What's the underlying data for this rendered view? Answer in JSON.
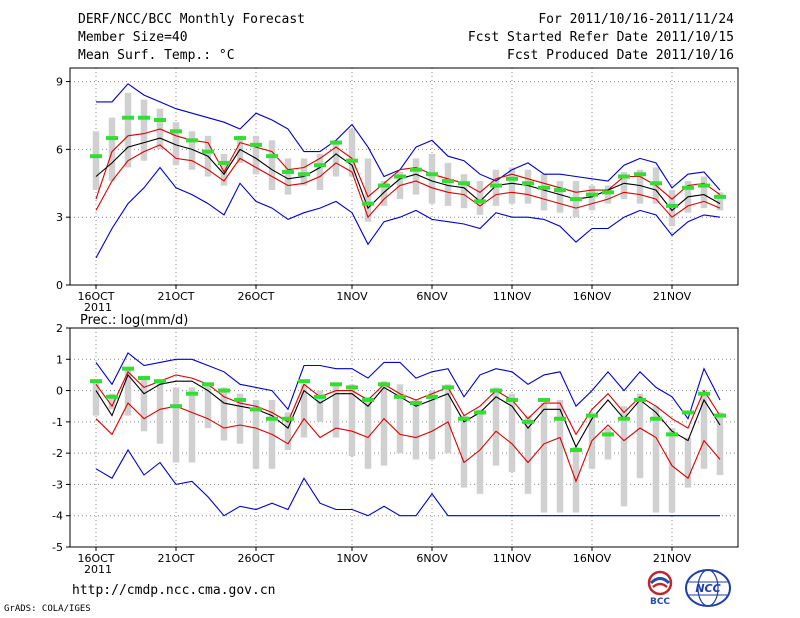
{
  "header": {
    "title": "DERF/NCC/BCC Monthly Forecast",
    "member": "Member Size=40",
    "variable": "Mean Surf. Temp.: °C",
    "forecast_for": "For 2011/10/16-2011/11/24",
    "started": "Fcst Started Refer Date 2011/10/15",
    "produced": "Fcst Produced Date 2011/10/16"
  },
  "footer": {
    "url": "http://cmdp.ncc.cma.gov.cn",
    "credit": "GrADS: COLA/IGES"
  },
  "logos": {
    "bcc": "BCC",
    "ncc": "NCC"
  },
  "colors": {
    "box": "#d0d0d0",
    "median": "#33dd33",
    "mean": "#000000",
    "spread": "#dd0000",
    "envelope": "#0000cc",
    "grid": "#888888"
  },
  "chart_data": [
    {
      "type": "line",
      "title": "Mean Surf. Temp.: °C",
      "ylim": [
        0,
        9.6
      ],
      "yticks": [
        0,
        3,
        6,
        9
      ],
      "x_range": [
        1,
        40
      ],
      "xticks": [
        {
          "x": 1,
          "label": "16OCT",
          "sub": "2011"
        },
        {
          "x": 6,
          "label": "21OCT"
        },
        {
          "x": 11,
          "label": "26OCT"
        },
        {
          "x": 17,
          "label": "1NOV"
        },
        {
          "x": 22,
          "label": "6NOV"
        },
        {
          "x": 27,
          "label": "11NOV"
        },
        {
          "x": 32,
          "label": "16NOV"
        },
        {
          "x": 37,
          "label": "21NOV"
        }
      ],
      "max": [
        8.1,
        8.1,
        8.9,
        8.4,
        8.1,
        7.8,
        7.6,
        7.4,
        7.2,
        6.9,
        7.6,
        7.3,
        6.9,
        5.9,
        5.9,
        6.4,
        7.1,
        6.1,
        4.8,
        5.1,
        6.1,
        6.4,
        5.7,
        5.5,
        4.9,
        4.6,
        5.1,
        5.4,
        4.9,
        4.9,
        4.8,
        4.7,
        4.6,
        5.3,
        5.6,
        5.4,
        4.3,
        4.9,
        5.0,
        4.2
      ],
      "upper": [
        3.8,
        5.9,
        6.6,
        6.7,
        6.9,
        6.6,
        6.4,
        6.3,
        5.0,
        6.3,
        6.1,
        5.9,
        5.1,
        5.2,
        5.6,
        6.1,
        5.6,
        3.9,
        4.5,
        5.1,
        5.2,
        4.9,
        4.7,
        4.5,
        4.1,
        4.7,
        4.9,
        4.7,
        4.5,
        4.3,
        4.1,
        4.2,
        4.2,
        4.8,
        4.8,
        4.4,
        3.8,
        4.4,
        4.5,
        4.0
      ],
      "mean": [
        4.8,
        5.4,
        6.1,
        6.3,
        6.5,
        6.2,
        6.0,
        5.7,
        4.9,
        6.0,
        5.6,
        5.1,
        4.7,
        4.8,
        5.2,
        5.8,
        5.3,
        3.4,
        4.1,
        4.7,
        4.9,
        4.6,
        4.4,
        4.3,
        3.7,
        4.4,
        4.5,
        4.4,
        4.2,
        4.0,
        3.8,
        3.9,
        4.2,
        4.5,
        4.4,
        4.2,
        3.3,
        3.9,
        4.0,
        3.6
      ],
      "lower": [
        3.3,
        4.6,
        5.5,
        5.9,
        6.2,
        5.6,
        5.5,
        5.1,
        4.6,
        5.6,
        5.2,
        4.8,
        4.4,
        4.5,
        4.8,
        5.4,
        5.0,
        3.0,
        3.8,
        4.4,
        4.6,
        4.3,
        4.1,
        4.0,
        3.5,
        4.0,
        4.1,
        4.0,
        3.8,
        3.6,
        3.4,
        3.6,
        3.8,
        4.1,
        4.0,
        3.8,
        3.0,
        3.5,
        3.7,
        3.4
      ],
      "min": [
        1.2,
        2.5,
        3.6,
        4.3,
        5.2,
        4.3,
        4.0,
        3.6,
        3.1,
        4.5,
        3.7,
        3.4,
        2.9,
        3.2,
        3.4,
        3.7,
        3.2,
        1.8,
        2.8,
        3.0,
        3.3,
        2.9,
        2.8,
        2.7,
        2.5,
        3.2,
        3.0,
        3.0,
        2.9,
        2.6,
        1.9,
        2.5,
        2.5,
        3.0,
        3.3,
        3.1,
        2.2,
        2.8,
        3.1,
        3.0
      ],
      "box_high": [
        6.8,
        7.4,
        8.5,
        8.2,
        7.8,
        7.2,
        6.8,
        6.6,
        5.8,
        6.6,
        6.6,
        6.4,
        5.6,
        5.6,
        5.8,
        6.4,
        6.9,
        5.6,
        4.6,
        5.0,
        5.6,
        5.8,
        5.4,
        4.9,
        4.6,
        5.1,
        5.2,
        5.1,
        4.9,
        4.6,
        4.6,
        4.4,
        4.4,
        5.0,
        5.1,
        5.2,
        4.2,
        4.6,
        4.8,
        4.1
      ],
      "box_low": [
        4.2,
        4.6,
        5.2,
        5.5,
        6.0,
        5.3,
        5.1,
        4.8,
        4.4,
        5.4,
        4.9,
        4.2,
        4.0,
        4.4,
        4.2,
        4.8,
        4.8,
        2.8,
        3.5,
        3.8,
        4.0,
        3.6,
        3.5,
        3.4,
        3.1,
        3.5,
        3.6,
        3.6,
        3.3,
        3.2,
        3.0,
        3.3,
        3.6,
        3.8,
        3.6,
        3.6,
        2.6,
        3.2,
        3.4,
        3.3
      ],
      "median": [
        5.7,
        6.5,
        7.4,
        7.4,
        7.3,
        6.8,
        6.4,
        5.9,
        5.4,
        6.5,
        6.2,
        5.7,
        5.0,
        4.9,
        5.3,
        6.3,
        5.5,
        3.6,
        4.4,
        4.8,
        5.1,
        4.9,
        4.6,
        4.5,
        3.7,
        4.4,
        4.7,
        4.5,
        4.3,
        4.2,
        3.8,
        4.0,
        4.1,
        4.8,
        4.9,
        4.5,
        3.5,
        4.3,
        4.4,
        3.9
      ]
    },
    {
      "type": "line",
      "title": "Prec.: log(mm/d)",
      "ylim": [
        -5,
        2
      ],
      "yticks": [
        -5,
        -4,
        -3,
        -2,
        -1,
        0,
        1,
        2
      ],
      "x_range": [
        1,
        40
      ],
      "xticks": [
        {
          "x": 1,
          "label": "16OCT",
          "sub": "2011"
        },
        {
          "x": 6,
          "label": "21OCT"
        },
        {
          "x": 11,
          "label": "26OCT"
        },
        {
          "x": 17,
          "label": "1NOV"
        },
        {
          "x": 22,
          "label": "6NOV"
        },
        {
          "x": 27,
          "label": "11NOV"
        },
        {
          "x": 32,
          "label": "16NOV"
        },
        {
          "x": 37,
          "label": "21NOV"
        }
      ],
      "max": [
        0.9,
        0.2,
        1.2,
        0.8,
        0.9,
        1.0,
        1.0,
        0.8,
        0.6,
        0.2,
        0.1,
        0.0,
        -0.6,
        0.8,
        0.8,
        0.7,
        0.7,
        0.4,
        0.9,
        0.9,
        0.4,
        0.6,
        0.7,
        -0.2,
        0.5,
        0.7,
        0.6,
        0.2,
        0.5,
        0.6,
        -0.5,
        0.0,
        0.6,
        0.0,
        0.6,
        0.1,
        -0.2,
        -0.9,
        0.7,
        -0.3
      ],
      "upper": [
        0.2,
        -0.5,
        0.6,
        0.1,
        0.3,
        0.5,
        0.4,
        0.2,
        -0.2,
        -0.4,
        -0.5,
        -0.7,
        -1.0,
        0.2,
        -0.2,
        0.0,
        0.0,
        -0.3,
        0.2,
        -0.1,
        -0.3,
        -0.1,
        0.1,
        -0.8,
        -0.5,
        0.0,
        -0.3,
        -0.9,
        -0.4,
        -0.4,
        -1.4,
        -0.6,
        -0.1,
        -0.7,
        -0.2,
        -0.5,
        -0.9,
        -1.2,
        0.0,
        -0.8
      ],
      "mean": [
        0.0,
        -0.8,
        0.5,
        -0.1,
        0.2,
        0.3,
        0.3,
        0.0,
        -0.4,
        -0.5,
        -0.6,
        -0.8,
        -1.2,
        0.0,
        -0.4,
        -0.1,
        -0.1,
        -0.5,
        0.1,
        -0.2,
        -0.5,
        -0.3,
        -0.1,
        -1.0,
        -0.7,
        -0.2,
        -0.5,
        -1.2,
        -0.6,
        -0.6,
        -1.8,
        -0.9,
        -0.3,
        -0.9,
        -0.3,
        -0.7,
        -1.3,
        -1.6,
        -0.3,
        -1.1
      ],
      "lower": [
        -0.9,
        -1.4,
        -0.4,
        -0.9,
        -0.6,
        -0.5,
        -0.7,
        -0.9,
        -1.2,
        -1.1,
        -1.2,
        -1.4,
        -1.7,
        -0.9,
        -1.5,
        -1.2,
        -1.3,
        -1.5,
        -0.9,
        -1.4,
        -1.5,
        -1.3,
        -1.0,
        -2.3,
        -1.9,
        -1.3,
        -1.7,
        -2.3,
        -1.7,
        -1.5,
        -2.9,
        -1.6,
        -1.1,
        -1.6,
        -1.2,
        -1.5,
        -2.4,
        -2.8,
        -1.6,
        -2.2
      ],
      "min": [
        -2.5,
        -2.8,
        -1.9,
        -2.7,
        -2.3,
        -3.0,
        -2.9,
        -3.4,
        -4.0,
        -3.7,
        -3.8,
        -3.6,
        -3.8,
        -2.8,
        -3.6,
        -3.8,
        -3.8,
        -4.0,
        -3.7,
        -4.0,
        -4.0,
        -3.3,
        -4.0,
        -4.0,
        -4.0,
        -4.0,
        -4.0,
        -4.0,
        -4.0,
        -4.0,
        -4.0,
        -4.0,
        -4.0,
        -4.0,
        -4.0,
        -4.0,
        -4.0,
        -4.0,
        -4.0,
        -4.0
      ],
      "box_high": [
        0.3,
        -0.1,
        0.7,
        0.4,
        0.3,
        0.1,
        0.1,
        0.2,
        0.1,
        -0.1,
        -0.3,
        -0.3,
        -0.7,
        0.2,
        0.0,
        0.2,
        0.2,
        -0.2,
        0.3,
        0.2,
        -0.3,
        0.0,
        0.2,
        -0.8,
        -0.6,
        0.1,
        -0.1,
        -0.8,
        -0.4,
        -0.3,
        -1.8,
        -0.8,
        -1.2,
        -0.5,
        -0.1,
        -0.5,
        -1.2,
        -1.5,
        -0.1,
        -0.7
      ],
      "box_low": [
        -0.8,
        -0.6,
        -0.8,
        -1.3,
        -1.7,
        -2.3,
        -2.3,
        -1.2,
        -1.6,
        -1.7,
        -2.5,
        -2.5,
        -1.9,
        -1.5,
        -1.0,
        -1.5,
        -2.1,
        -2.5,
        -2.4,
        -2.0,
        -2.2,
        -2.2,
        -2.0,
        -3.1,
        -3.3,
        -2.4,
        -2.6,
        -3.3,
        -3.9,
        -3.9,
        -3.9,
        -2.5,
        -2.2,
        -3.7,
        -2.8,
        -3.9,
        -3.9,
        -3.1,
        -2.5,
        -2.7
      ],
      "median": [
        0.3,
        -0.2,
        0.7,
        0.4,
        0.3,
        -0.5,
        -0.1,
        0.2,
        0.0,
        -0.3,
        -0.6,
        -0.9,
        -0.9,
        0.3,
        -0.2,
        0.2,
        0.1,
        -0.3,
        0.2,
        -0.2,
        -0.4,
        -0.2,
        0.1,
        -0.9,
        -0.7,
        0.0,
        -0.3,
        -1.0,
        -0.3,
        -0.9,
        -1.9,
        -0.8,
        -1.4,
        -0.9,
        -0.3,
        -0.9,
        -1.4,
        -0.7,
        -0.1,
        -0.8
      ]
    }
  ]
}
